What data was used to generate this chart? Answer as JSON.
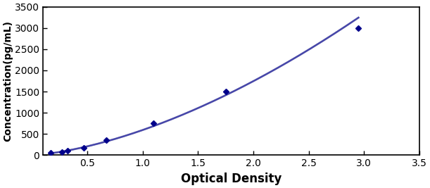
{
  "x": [
    0.17,
    0.27,
    0.32,
    0.47,
    0.67,
    1.1,
    1.75,
    2.95
  ],
  "y": [
    50,
    75,
    100,
    175,
    350,
    750,
    1500,
    3000
  ],
  "line_color": "#4444AA",
  "fit_line_color": "#8888BB",
  "marker": "D",
  "marker_color": "#00008B",
  "marker_size": 4,
  "xlabel": "Optical Density",
  "ylabel": "Concentration(pg/mL)",
  "xlim": [
    0.1,
    3.5
  ],
  "ylim": [
    0,
    3500
  ],
  "xticks": [
    0.5,
    1.0,
    1.5,
    2.0,
    2.5,
    3.0,
    3.5
  ],
  "yticks": [
    0,
    500,
    1000,
    1500,
    2000,
    2500,
    3000,
    3500
  ],
  "xlabel_fontsize": 12,
  "ylabel_fontsize": 10,
  "tick_fontsize": 10,
  "line_width": 1.5,
  "background_color": "#ffffff"
}
